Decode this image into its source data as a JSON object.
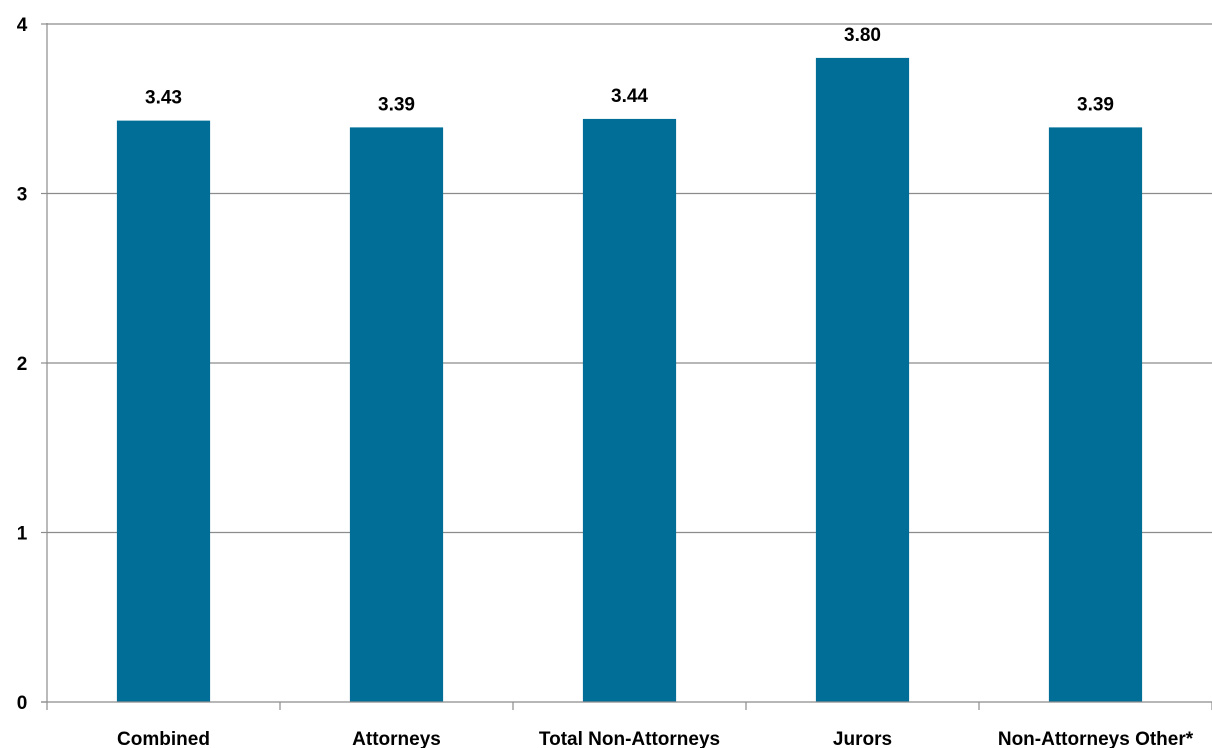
{
  "chart_data": {
    "type": "bar",
    "categories": [
      "Combined",
      "Attorneys",
      "Total Non-Attorneys",
      "Jurors",
      "Non-Attorneys Other*"
    ],
    "values": [
      3.43,
      3.39,
      3.44,
      3.8,
      3.39
    ],
    "data_labels": [
      "3.43",
      "3.39",
      "3.44",
      "3.80",
      "3.39"
    ],
    "y_ticks": [
      "0",
      "1",
      "2",
      "3",
      "4"
    ],
    "ylim": [
      0,
      4
    ],
    "grid": true,
    "bar_color": "#006e96",
    "grid_color": "#8c8c8c",
    "axis_color": "#8c8c8c",
    "title": "",
    "xlabel": "",
    "ylabel": ""
  }
}
